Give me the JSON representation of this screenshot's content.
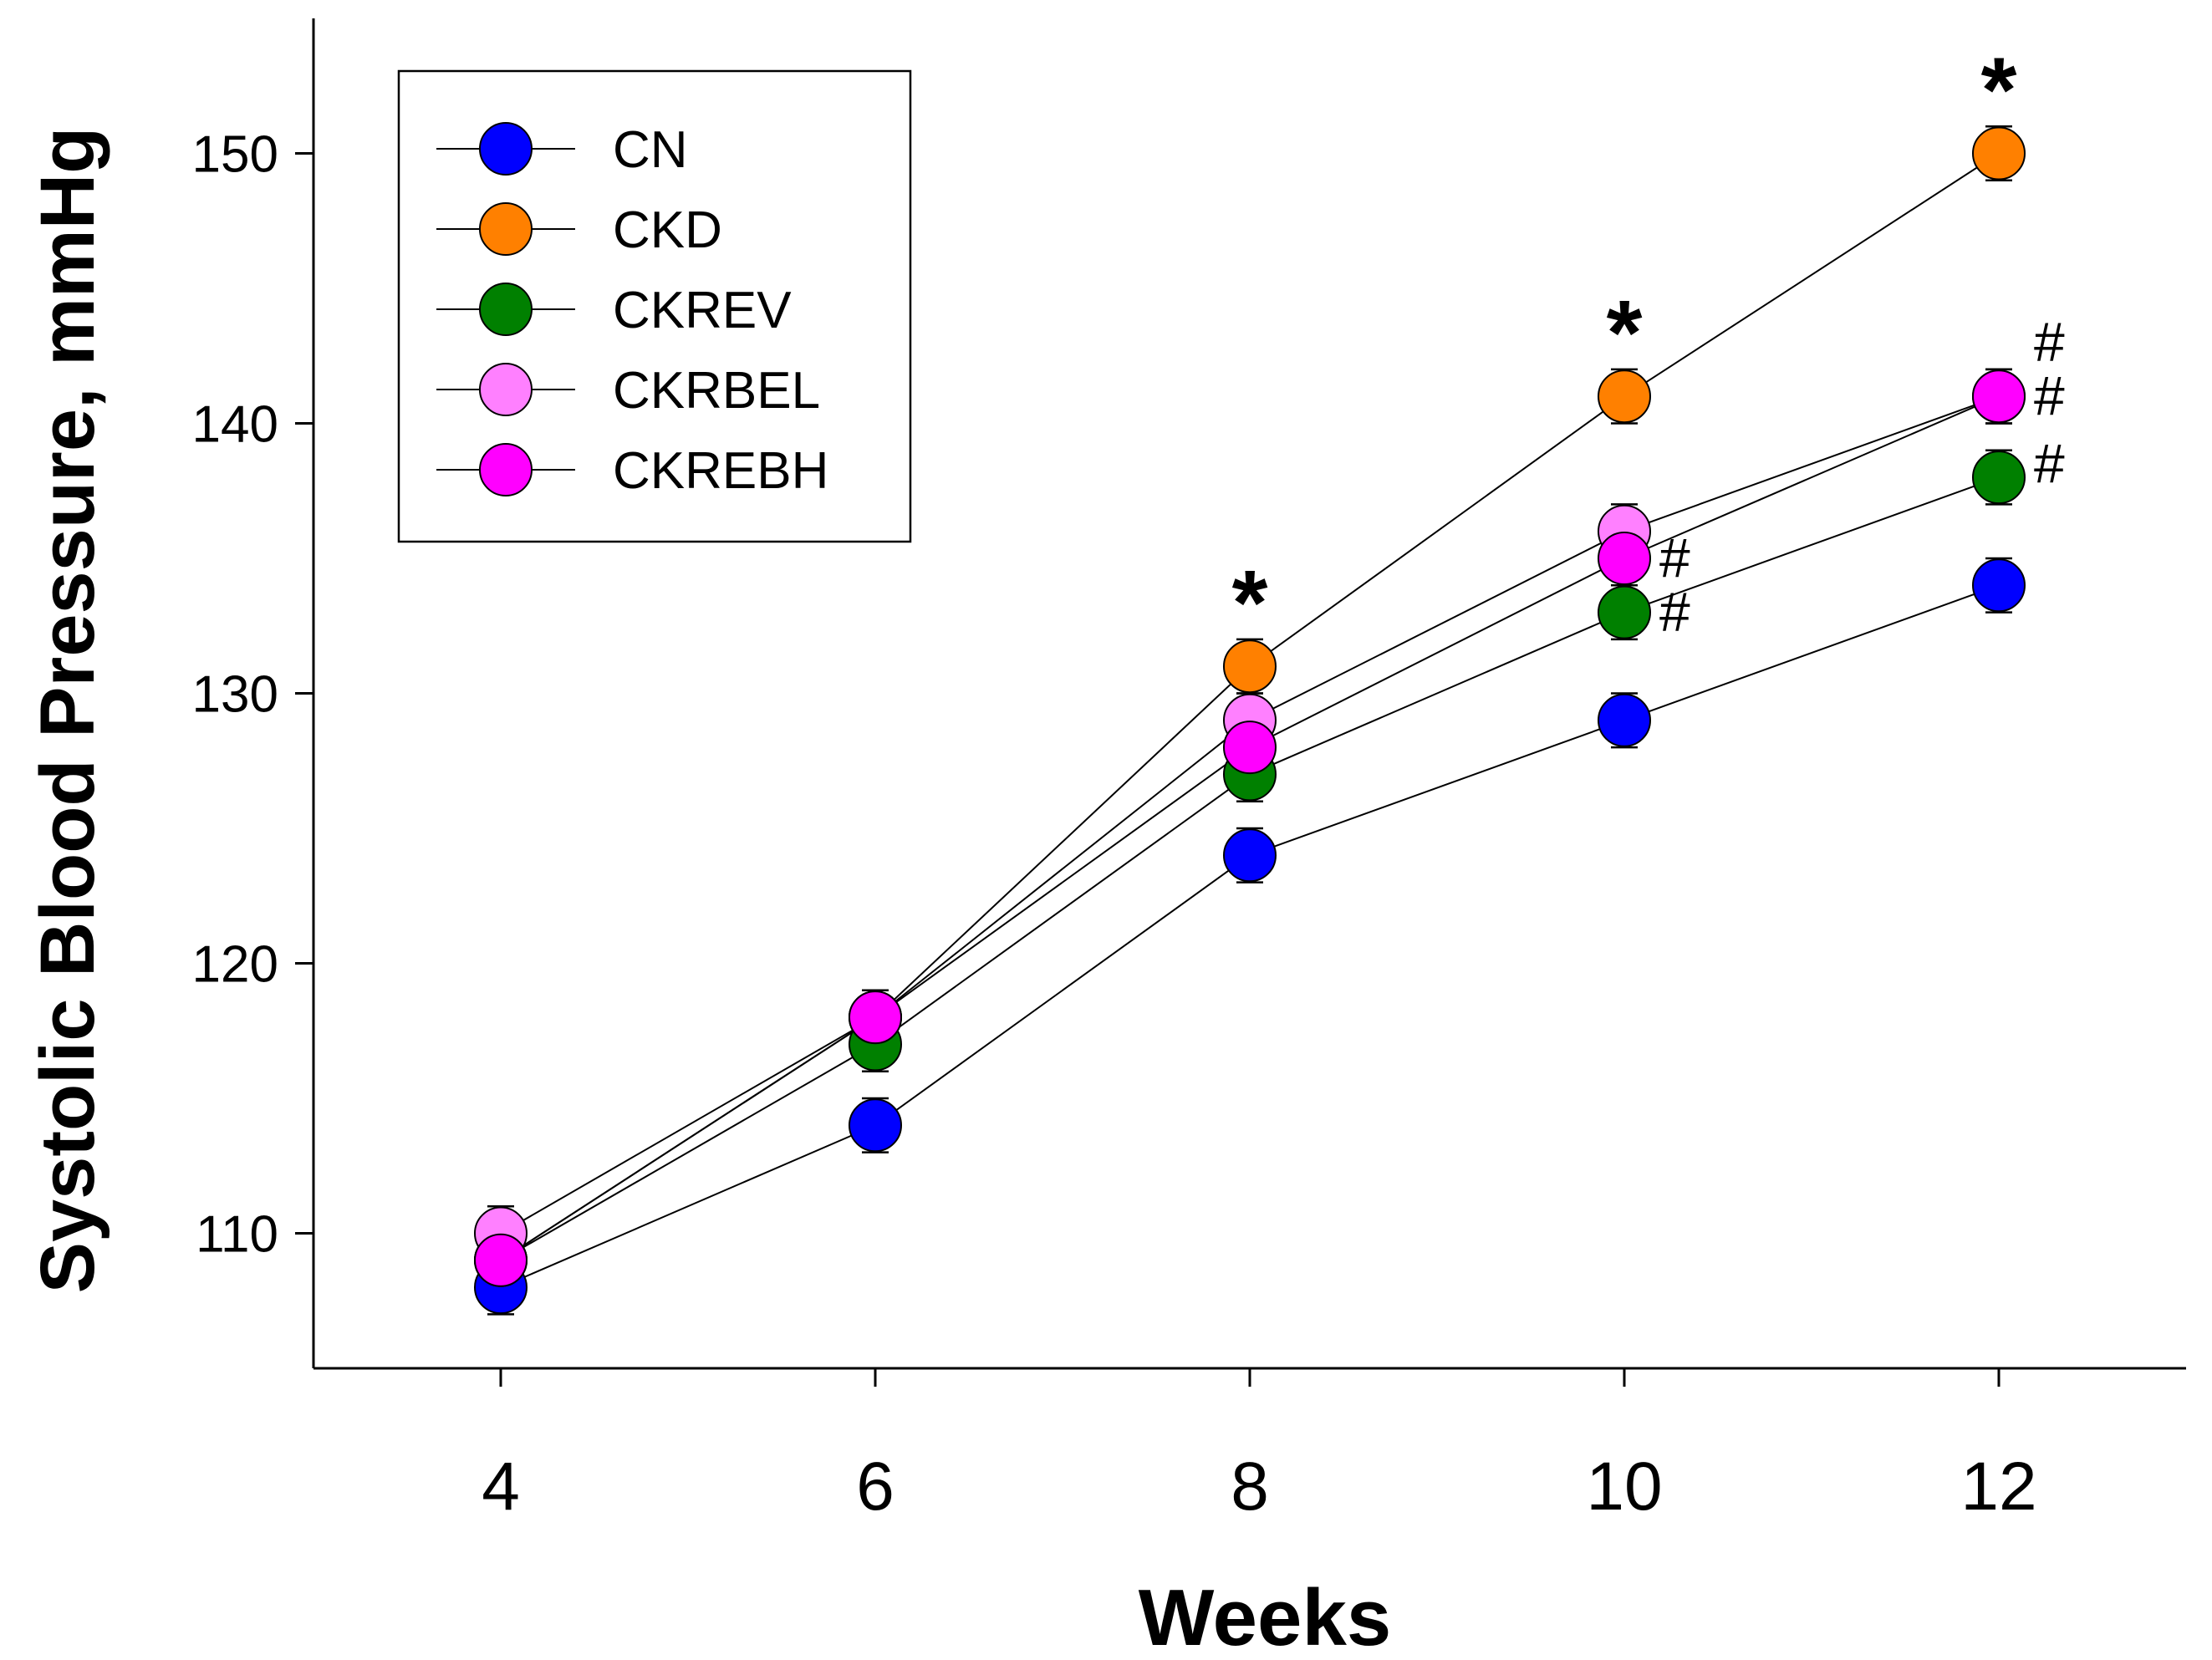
{
  "chart_data": {
    "type": "line",
    "title": "",
    "xlabel": "Weeks",
    "ylabel": "Systolic Blood Pressure, mmHg",
    "x": [
      4,
      6,
      8,
      10,
      12
    ],
    "xlim": [
      3,
      13
    ],
    "ylim": [
      105,
      155
    ],
    "xticks": [
      "4",
      "6",
      "8",
      "10",
      "12"
    ],
    "yticks": [
      "110",
      "120",
      "130",
      "140",
      "150"
    ],
    "legend_position": "top-left",
    "error_bar_halfwidth": 1,
    "series": [
      {
        "name": "CN",
        "color": "#0000ff",
        "values": [
          108,
          114,
          124,
          129,
          134
        ]
      },
      {
        "name": "CKD",
        "color": "#ff8000",
        "values": [
          109,
          118,
          131,
          141,
          150
        ]
      },
      {
        "name": "CKREV",
        "color": "#008000",
        "values": [
          109,
          117,
          127,
          133,
          138
        ]
      },
      {
        "name": "CKRBEL",
        "color": "#ff80ff",
        "values": [
          110,
          118,
          129,
          136,
          141
        ]
      },
      {
        "name": "CKREBH",
        "color": "#ff00ff",
        "values": [
          109,
          118,
          128,
          135,
          141
        ]
      }
    ],
    "annotations": [
      {
        "text": "*",
        "x": 8,
        "y": 131,
        "kind": "star"
      },
      {
        "text": "*",
        "x": 10,
        "y": 141,
        "kind": "star"
      },
      {
        "text": "*",
        "x": 12,
        "y": 150,
        "kind": "star"
      },
      {
        "text": "#",
        "x": 10,
        "y": 135,
        "kind": "hash"
      },
      {
        "text": "#",
        "x": 10,
        "y": 133,
        "kind": "hash"
      },
      {
        "text": "#",
        "x": 12,
        "y": 143,
        "kind": "hash"
      },
      {
        "text": "#",
        "x": 12,
        "y": 141,
        "kind": "hash"
      },
      {
        "text": "#",
        "x": 12,
        "y": 138.5,
        "kind": "hash"
      }
    ]
  }
}
